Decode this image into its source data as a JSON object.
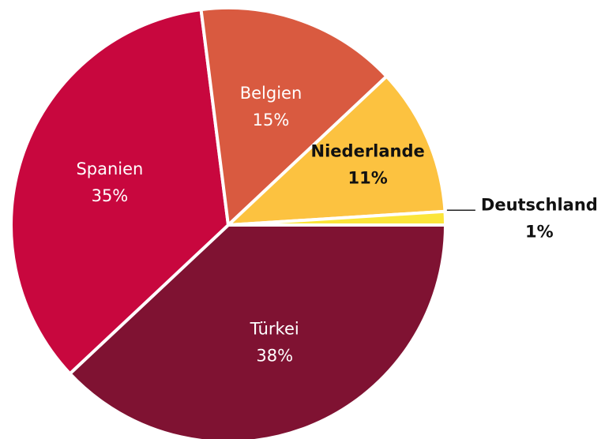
{
  "chart_data": {
    "type": "pie",
    "categories": [
      "Türkei",
      "Spanien",
      "Belgien",
      "Niederlande",
      "Deutschland"
    ],
    "values": [
      38,
      35,
      15,
      11,
      1
    ],
    "value_labels": [
      "38%",
      "35%",
      "15%",
      "11%",
      "1%"
    ],
    "colors": [
      "#7f1232",
      "#c8073e",
      "#d95a40",
      "#fcc240",
      "#fbe53a"
    ]
  }
}
